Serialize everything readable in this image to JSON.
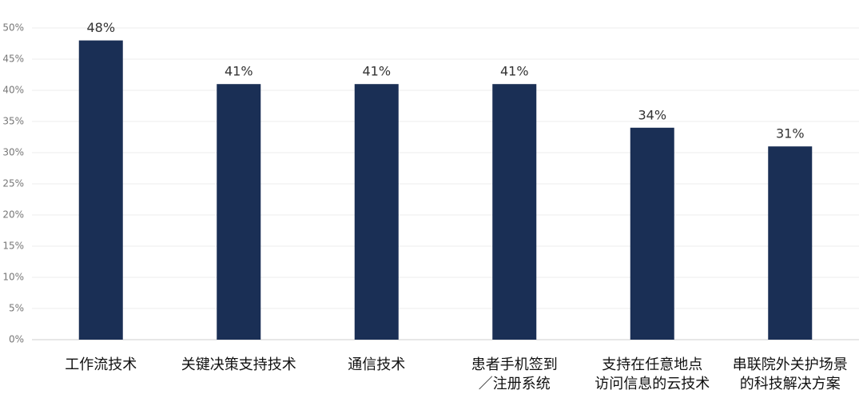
{
  "chart_data": {
    "type": "bar",
    "categories": [
      "工作流技术",
      "关键决策支持技术",
      "通信技术",
      "患者手机签到\n／注册系统",
      "支持在任意地点\n访问信息的云技术",
      "串联院外关护场景\n的科技解决方案"
    ],
    "values": [
      48,
      41,
      41,
      41,
      34,
      31
    ],
    "value_labels": [
      "48%",
      "41%",
      "41%",
      "41%",
      "34%",
      "31%"
    ],
    "color": "#1a2f55",
    "ylim": [
      0,
      50
    ],
    "yticks": [
      {
        "value": 0,
        "label": "0%"
      },
      {
        "value": 5,
        "label": "5%"
      },
      {
        "value": 10,
        "label": "10%"
      },
      {
        "value": 15,
        "label": "15%"
      },
      {
        "value": 20,
        "label": "20%"
      },
      {
        "value": 25,
        "label": "25%"
      },
      {
        "value": 30,
        "label": "30%"
      },
      {
        "value": 35,
        "label": "35%"
      },
      {
        "value": 40,
        "label": "40%"
      },
      {
        "value": 45,
        "label": "45%"
      },
      {
        "value": 50,
        "label": "50%"
      }
    ],
    "grid": true
  }
}
